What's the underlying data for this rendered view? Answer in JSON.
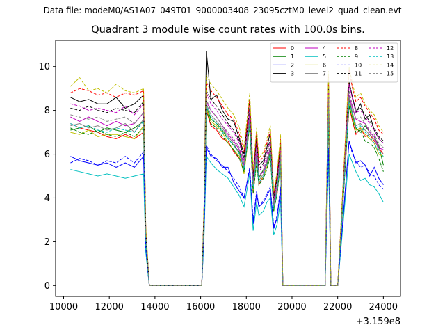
{
  "figure": {
    "suptitle": "Data file: modeM0/AS1A07_049T01_9000003408_23095cztM0_level2_quad_clean.evt"
  },
  "chart_data": {
    "type": "line",
    "title": "Quadrant 3 module wise count rates with 100.0s bins.",
    "xlabel": "",
    "ylabel": "",
    "x_offset_label": "+3.159e8",
    "xlim": [
      9650,
      24750
    ],
    "ylim": [
      -0.5,
      11.2
    ],
    "xticks": [
      "10000",
      "12000",
      "14000",
      "16000",
      "18000",
      "20000",
      "22000",
      "24000"
    ],
    "xtick_values": [
      10000,
      12000,
      14000,
      16000,
      18000,
      20000,
      22000,
      24000
    ],
    "yticks": [
      "0",
      "2",
      "4",
      "6",
      "8",
      "10"
    ],
    "ytick_values": [
      0,
      2,
      4,
      6,
      8,
      10
    ],
    "legend_position": "top-right",
    "legend_columns": 4,
    "x": [
      10300,
      10700,
      11100,
      11500,
      11900,
      12300,
      12700,
      13100,
      13500,
      13600,
      13750,
      13850,
      14400,
      15000,
      15600,
      16050,
      16150,
      16250,
      16450,
      16700,
      16950,
      17200,
      17450,
      17700,
      17900,
      18150,
      18300,
      18450,
      18550,
      18750,
      18900,
      19050,
      19200,
      19350,
      19500,
      19600,
      20000,
      21000,
      21450,
      21600,
      21700,
      21800,
      22000,
      22500,
      22650,
      22800,
      23000,
      23200,
      23400,
      23600,
      23800,
      24000
    ],
    "series": [
      {
        "name": "0",
        "style": "solid",
        "color": "#ff0000",
        "values": [
          7.4,
          7.2,
          7.1,
          7.0,
          6.8,
          6.7,
          6.9,
          6.7,
          7.0,
          2.0,
          0.0,
          0,
          0,
          0,
          0,
          0.0,
          3.0,
          8.0,
          7.3,
          7.1,
          6.7,
          6.6,
          6.1,
          5.8,
          5.2,
          7.4,
          4.2,
          5.7,
          4.6,
          5.0,
          5.4,
          6.1,
          3.5,
          4.2,
          5.6,
          0,
          0,
          0,
          0,
          7.8,
          0,
          0,
          0,
          8.2,
          7.5,
          6.9,
          7.2,
          6.8,
          6.9,
          6.6,
          6.3,
          6.0
        ]
      },
      {
        "name": "1",
        "style": "solid",
        "color": "#008000",
        "values": [
          7.1,
          7.2,
          7.3,
          7.0,
          7.2,
          7.1,
          7.0,
          7.2,
          7.5,
          2.1,
          0.0,
          0,
          0,
          0,
          0,
          0.0,
          3.1,
          8.2,
          7.6,
          7.4,
          7.1,
          6.7,
          6.4,
          6.1,
          5.3,
          7.6,
          4.4,
          5.8,
          4.9,
          5.3,
          5.5,
          6.1,
          3.4,
          4.4,
          5.8,
          0,
          0,
          0,
          0,
          8.0,
          0,
          0,
          0,
          8.5,
          7.8,
          7.2,
          7.0,
          7.3,
          7.0,
          6.8,
          6.4,
          5.5
        ]
      },
      {
        "name": "2",
        "style": "solid",
        "color": "#0000ff",
        "values": [
          5.9,
          5.7,
          5.6,
          5.5,
          5.6,
          5.4,
          5.6,
          5.4,
          5.9,
          1.6,
          0.0,
          0,
          0,
          0,
          0,
          0.0,
          2.4,
          6.3,
          5.9,
          5.8,
          5.4,
          5.4,
          4.7,
          4.3,
          4.0,
          5.3,
          2.8,
          4.2,
          3.6,
          3.8,
          4.1,
          4.4,
          2.6,
          3.1,
          4.4,
          0,
          0,
          0,
          0,
          6.2,
          0,
          0,
          0,
          6.6,
          6.1,
          5.6,
          5.7,
          5.5,
          5.0,
          5.4,
          4.9,
          4.6
        ]
      },
      {
        "name": "3",
        "style": "solid",
        "color": "#000000",
        "values": [
          8.6,
          8.4,
          8.5,
          8.3,
          8.3,
          8.6,
          8.1,
          8.3,
          8.7,
          2.5,
          0.0,
          0,
          0,
          0,
          0,
          0.0,
          3.6,
          10.7,
          8.5,
          8.7,
          8.0,
          7.6,
          7.5,
          6.7,
          6.0,
          8.5,
          5.0,
          6.9,
          5.5,
          5.7,
          6.3,
          7.0,
          4.1,
          5.0,
          6.6,
          0,
          0,
          0,
          0,
          9.4,
          0,
          0,
          0,
          9.2,
          8.6,
          7.9,
          8.3,
          7.6,
          7.8,
          7.1,
          6.7,
          6.5
        ]
      },
      {
        "name": "4",
        "style": "solid",
        "color": "#bf00bf",
        "values": [
          7.7,
          7.5,
          7.7,
          7.5,
          7.3,
          7.5,
          7.3,
          7.4,
          7.9,
          2.2,
          0.0,
          0,
          0,
          0,
          0,
          0.0,
          3.3,
          8.4,
          8.0,
          7.7,
          7.3,
          6.9,
          6.6,
          6.2,
          5.5,
          7.8,
          4.6,
          6.1,
          5.0,
          5.2,
          5.7,
          6.3,
          3.7,
          4.5,
          5.9,
          0,
          0,
          0,
          0,
          8.4,
          0,
          0,
          0,
          8.7,
          8.1,
          7.6,
          7.5,
          7.4,
          7.0,
          6.8,
          6.3,
          6.2
        ]
      },
      {
        "name": "5",
        "style": "solid",
        "color": "#00bfbf",
        "values": [
          5.3,
          5.2,
          5.1,
          5.0,
          5.1,
          5.0,
          4.9,
          5.0,
          5.1,
          1.5,
          0.0,
          0,
          0,
          0,
          0,
          0.0,
          2.2,
          5.9,
          5.6,
          5.3,
          5.1,
          4.9,
          4.5,
          4.1,
          3.6,
          5.1,
          2.5,
          3.8,
          3.2,
          3.4,
          3.8,
          4.0,
          2.3,
          2.8,
          3.9,
          0,
          0,
          0,
          0,
          5.8,
          0,
          0,
          0,
          6.0,
          5.6,
          5.2,
          4.8,
          4.9,
          4.6,
          4.5,
          4.2,
          3.8
        ]
      },
      {
        "name": "6",
        "style": "solid",
        "color": "#bfbf00",
        "values": [
          7.0,
          6.9,
          7.1,
          6.8,
          6.9,
          6.9,
          6.8,
          6.7,
          7.3,
          2.0,
          0.0,
          0,
          0,
          0,
          0,
          0.0,
          3.0,
          8.1,
          7.5,
          7.3,
          7.0,
          6.5,
          6.2,
          5.9,
          5.1,
          7.3,
          4.3,
          5.6,
          4.7,
          5.0,
          5.4,
          6.0,
          3.5,
          4.3,
          5.7,
          0,
          0,
          0,
          0,
          7.9,
          0,
          0,
          0,
          8.3,
          7.7,
          7.1,
          7.2,
          6.9,
          6.7,
          6.5,
          6.0,
          5.9
        ]
      },
      {
        "name": "7",
        "style": "solid",
        "color": "#808080",
        "values": [
          7.3,
          7.4,
          7.2,
          7.3,
          7.1,
          7.2,
          7.4,
          7.0,
          7.6,
          2.2,
          0.0,
          0,
          0,
          0,
          0,
          0.0,
          3.2,
          8.3,
          7.8,
          7.5,
          7.2,
          6.8,
          6.5,
          6.0,
          5.4,
          7.5,
          4.5,
          5.9,
          4.8,
          5.1,
          5.6,
          6.2,
          3.6,
          4.4,
          5.8,
          0,
          0,
          0,
          0,
          8.2,
          0,
          0,
          0,
          8.6,
          7.9,
          7.3,
          7.4,
          7.1,
          6.9,
          6.7,
          6.2,
          6.0
        ]
      },
      {
        "name": "8",
        "style": "dashed",
        "color": "#ff0000",
        "values": [
          8.8,
          9.0,
          8.9,
          8.7,
          8.8,
          8.6,
          8.8,
          8.7,
          8.9,
          2.6,
          0.0,
          0,
          0,
          0,
          0,
          0.0,
          3.7,
          9.3,
          8.9,
          8.6,
          8.2,
          7.8,
          7.6,
          6.9,
          6.1,
          8.5,
          5.1,
          7.0,
          5.6,
          5.9,
          6.5,
          7.1,
          4.2,
          5.1,
          6.7,
          0,
          0,
          0,
          0,
          9.6,
          0,
          0,
          0,
          9.9,
          9.0,
          8.4,
          8.6,
          8.2,
          7.9,
          7.6,
          7.1,
          6.9
        ]
      },
      {
        "name": "9",
        "style": "dashed",
        "color": "#008000",
        "values": [
          7.2,
          7.0,
          6.9,
          7.1,
          6.9,
          6.8,
          7.0,
          6.8,
          7.2,
          2.0,
          0.0,
          0,
          0,
          0,
          0,
          0.0,
          3.0,
          8.0,
          7.4,
          7.2,
          6.8,
          6.5,
          6.2,
          5.8,
          5.2,
          7.3,
          4.2,
          5.6,
          4.6,
          4.9,
          5.3,
          5.9,
          3.4,
          4.2,
          5.6,
          0,
          0,
          0,
          0,
          7.9,
          0,
          0,
          0,
          8.2,
          7.6,
          7.0,
          7.1,
          6.6,
          6.5,
          6.3,
          5.8,
          5.2
        ]
      },
      {
        "name": "10",
        "style": "dashed",
        "color": "#0000ff",
        "values": [
          5.6,
          5.8,
          5.7,
          5.5,
          5.7,
          5.6,
          5.9,
          5.6,
          6.1,
          1.7,
          0.0,
          0,
          0,
          0,
          0,
          0.0,
          2.5,
          6.4,
          6.0,
          5.7,
          5.5,
          5.2,
          4.9,
          4.5,
          4.0,
          5.4,
          3.0,
          4.3,
          3.6,
          3.9,
          4.2,
          4.5,
          2.7,
          3.2,
          4.5,
          0,
          0,
          0,
          0,
          6.3,
          0,
          0,
          0,
          6.6,
          6.0,
          5.7,
          5.4,
          5.5,
          5.1,
          5.0,
          4.6,
          4.4
        ]
      },
      {
        "name": "11",
        "style": "dashed",
        "color": "#000000",
        "values": [
          8.1,
          8.0,
          8.2,
          8.0,
          7.9,
          8.1,
          8.0,
          7.9,
          8.4,
          2.4,
          0.0,
          0,
          0,
          0,
          0,
          0.0,
          3.5,
          8.9,
          8.5,
          8.2,
          7.8,
          7.4,
          7.1,
          6.6,
          5.8,
          8.1,
          4.9,
          6.6,
          5.3,
          5.6,
          6.1,
          6.7,
          3.9,
          4.8,
          6.3,
          0,
          0,
          0,
          0,
          9.0,
          0,
          0,
          0,
          9.3,
          8.6,
          8.0,
          8.1,
          7.8,
          7.5,
          7.2,
          6.8,
          6.6
        ]
      },
      {
        "name": "12",
        "style": "dashed",
        "color": "#bf00bf",
        "values": [
          8.3,
          8.2,
          8.0,
          8.1,
          8.0,
          7.9,
          8.2,
          7.8,
          8.3,
          2.4,
          0.0,
          0,
          0,
          0,
          0,
          0.0,
          3.5,
          8.8,
          8.3,
          8.0,
          7.6,
          7.3,
          7.0,
          6.5,
          5.7,
          8.0,
          4.8,
          6.5,
          5.2,
          5.5,
          6.0,
          6.6,
          3.9,
          4.7,
          6.2,
          0,
          0,
          0,
          0,
          8.9,
          0,
          0,
          0,
          9.2,
          8.5,
          7.9,
          8.0,
          7.7,
          7.4,
          7.1,
          6.7,
          6.5
        ]
      },
      {
        "name": "13",
        "style": "dashed",
        "color": "#00bfbf",
        "values": [
          7.4,
          7.2,
          7.3,
          7.1,
          7.0,
          7.2,
          7.1,
          7.0,
          7.5,
          2.1,
          0.0,
          0,
          0,
          0,
          0,
          0.0,
          3.1,
          8.2,
          7.7,
          7.4,
          7.0,
          6.7,
          6.4,
          6.0,
          5.3,
          7.4,
          4.4,
          5.8,
          4.7,
          5.0,
          5.5,
          6.0,
          3.5,
          4.3,
          5.7,
          0,
          0,
          0,
          0,
          8.1,
          0,
          0,
          0,
          8.4,
          7.8,
          7.2,
          7.3,
          7.0,
          6.8,
          6.5,
          6.1,
          5.9
        ]
      },
      {
        "name": "14",
        "style": "dashed",
        "color": "#bfbf00",
        "values": [
          9.1,
          9.5,
          8.9,
          9.0,
          8.8,
          9.2,
          8.9,
          8.8,
          9.0,
          2.7,
          0.0,
          0,
          0,
          0,
          0,
          0.0,
          3.8,
          9.6,
          9.2,
          8.9,
          8.5,
          8.1,
          7.8,
          7.2,
          6.3,
          8.8,
          5.3,
          7.2,
          5.8,
          6.1,
          6.7,
          7.3,
          4.3,
          5.2,
          6.9,
          0,
          0,
          0,
          0,
          9.8,
          0,
          0,
          0,
          10.0,
          9.2,
          8.6,
          8.8,
          8.3,
          8.0,
          7.8,
          7.3,
          7.0
        ]
      },
      {
        "name": "15",
        "style": "dashed",
        "color": "#808080",
        "values": [
          7.8,
          7.7,
          7.6,
          7.7,
          7.5,
          7.6,
          7.7,
          7.4,
          7.9,
          2.3,
          0.0,
          0,
          0,
          0,
          0,
          0.0,
          3.3,
          8.5,
          8.0,
          7.7,
          7.3,
          7.0,
          6.7,
          6.3,
          5.6,
          7.7,
          4.6,
          6.2,
          5.0,
          5.3,
          5.8,
          6.4,
          3.7,
          4.5,
          6.0,
          0,
          0,
          0,
          0,
          8.6,
          0,
          0,
          0,
          8.9,
          8.2,
          7.6,
          7.7,
          7.4,
          7.1,
          6.9,
          6.5,
          6.3
        ]
      }
    ]
  }
}
